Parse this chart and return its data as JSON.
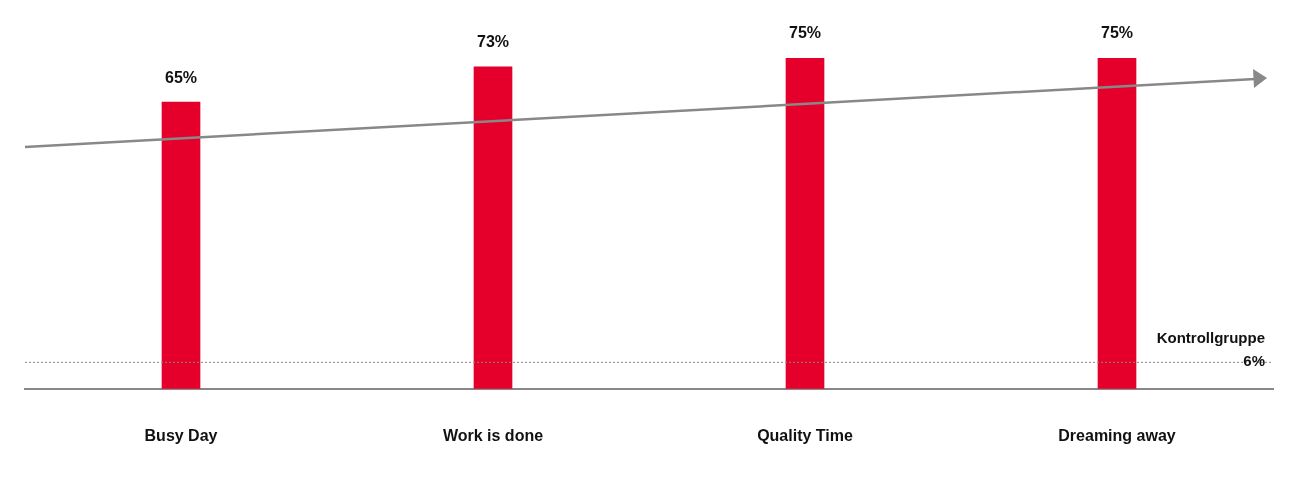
{
  "chart_data": {
    "type": "bar",
    "categories": [
      "Busy Day",
      "Work is done",
      "Quality Time",
      "Dreaming away"
    ],
    "values": [
      65,
      73,
      75,
      75
    ],
    "color": "#e4002b",
    "value_labels": [
      "65%",
      "73%",
      "75%",
      "75%"
    ],
    "ref_lines": [
      {
        "axis": "y",
        "value": 6,
        "label": "Kontrollgruppe 6%",
        "color": "#888888",
        "line_style": "dotted"
      }
    ],
    "grid": false,
    "legend": false
  }
}
